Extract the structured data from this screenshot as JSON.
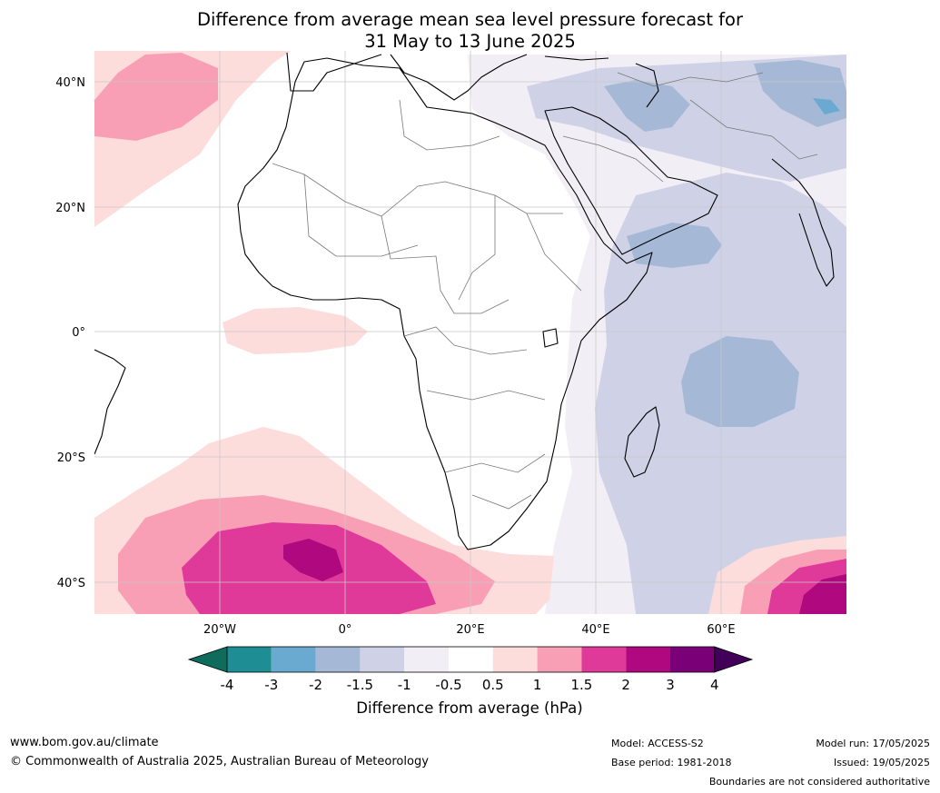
{
  "title_line1": "Difference from average mean sea level pressure forecast for",
  "title_line2": "31 May to 13 June 2025",
  "lat_labels": [
    "40°N",
    "20°N",
    "0°",
    "20°S",
    "40°S"
  ],
  "lon_labels": [
    "20°W",
    "0°",
    "20°E",
    "40°E",
    "60°E"
  ],
  "colorbar": {
    "title": "Difference from average (hPa)",
    "ticks": [
      "-4",
      "-3",
      "-2",
      "-1.5",
      "-1",
      "-0.5",
      "0.5",
      "1",
      "1.5",
      "2",
      "3",
      "4"
    ],
    "colors": [
      "#0f6b5b",
      "#1f8e94",
      "#6aaad0",
      "#a5b9d6",
      "#cfd2e6",
      "#f2eef5",
      "#ffffff",
      "#fddcdc",
      "#f89fb6",
      "#df3a9a",
      "#b0087e",
      "#7a0078",
      "#420058"
    ]
  },
  "footer": {
    "website": "www.bom.gov.au/climate",
    "copyright": "© Commonwealth of Australia 2025, Australian Bureau of Meteorology",
    "model": "Model: ACCESS-S2",
    "base_period": "Base period: 1981-2018",
    "model_run": "Model run: 17/05/2025",
    "issued": "Issued: 19/05/2025",
    "boundaries": "Boundaries are not considered authoritative"
  }
}
